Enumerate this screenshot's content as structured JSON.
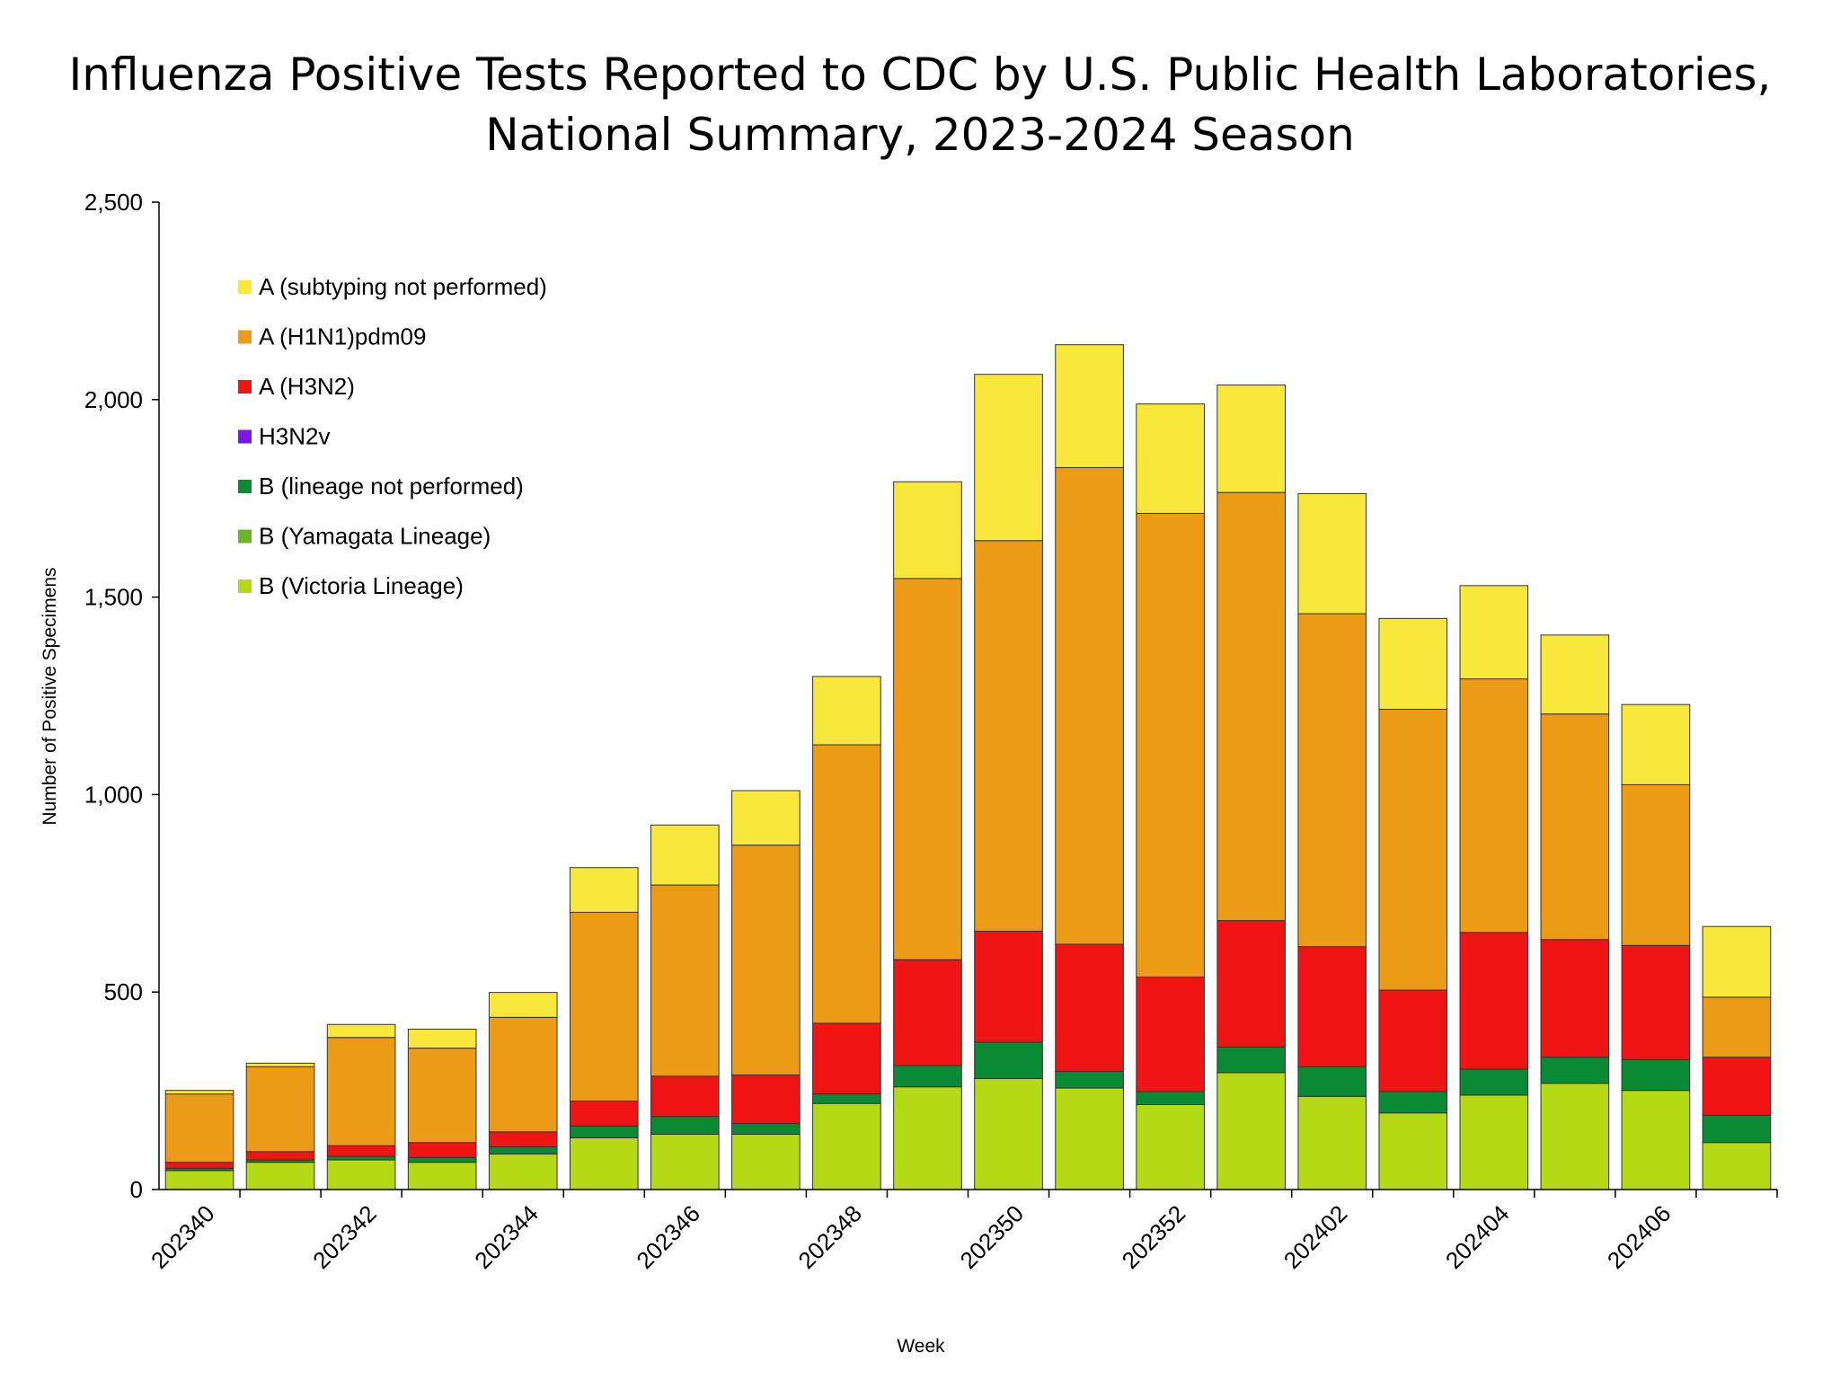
{
  "chart_data": {
    "type": "stacked_bar",
    "title": [
      "Influenza Positive Tests Reported to CDC by U.S. Public Health Laboratories,",
      "National Summary, 2023-2024 Season"
    ],
    "x_label": "Week",
    "y_label": "Number of Positive Specimens",
    "categories": [
      "202340",
      null,
      "202342",
      null,
      "202344",
      null,
      "202346",
      null,
      "202348",
      null,
      "202350",
      null,
      "202352",
      null,
      "202402",
      null,
      "202404",
      null,
      "202406",
      null
    ],
    "ylim": [
      0,
      2500
    ],
    "yticks": [
      0,
      500,
      {
        "value": 1000,
        "label": "1,000"
      },
      {
        "value": 1500,
        "label": "1,500"
      },
      {
        "value": 2000,
        "label": "2,000"
      },
      {
        "value": 2500,
        "label": "2,500"
      }
    ],
    "series": [
      {
        "name": "B (Victoria Lineage)",
        "color": "#b5da15",
        "values": [
          48,
          69,
          75,
          69,
          90,
          131,
          140,
          140,
          218,
          260,
          281,
          257,
          215,
          296,
          236,
          194,
          239,
          269,
          251,
          119
        ]
      },
      {
        "name": "B (Yamagata Lineage)",
        "color": "#6ab42a",
        "values": [
          0,
          0,
          0,
          0,
          0,
          0,
          0,
          0,
          0,
          0,
          0,
          0,
          0,
          0,
          0,
          0,
          0,
          0,
          0,
          0
        ]
      },
      {
        "name": "B (lineage not performed)",
        "color": "#0b8a35",
        "values": [
          6,
          6,
          9,
          12,
          18,
          30,
          45,
          27,
          24,
          54,
          92,
          42,
          33,
          65,
          75,
          54,
          66,
          66,
          78,
          69
        ]
      },
      {
        "name": "H3N2v",
        "color": "#7a18e0",
        "values": [
          0,
          0,
          0,
          0,
          0,
          0,
          0,
          0,
          0,
          0,
          0,
          0,
          0,
          0,
          0,
          0,
          0,
          0,
          0,
          0
        ]
      },
      {
        "name": "A (H3N2)",
        "color": "#f01414",
        "values": [
          15,
          21,
          27,
          38,
          38,
          63,
          102,
          123,
          179,
          268,
          281,
          322,
          290,
          320,
          304,
          257,
          346,
          298,
          289,
          147
        ]
      },
      {
        "name": "A (H1N1)pdm09",
        "color": "#ec9b17",
        "values": [
          173,
          215,
          274,
          239,
          290,
          478,
          484,
          582,
          705,
          965,
          989,
          1207,
          1174,
          1084,
          843,
          711,
          642,
          571,
          407,
          152
        ]
      },
      {
        "name": "A (subtyping not performed)",
        "color": "#f9e83c",
        "values": [
          9,
          9,
          33,
          48,
          63,
          113,
          152,
          138,
          173,
          245,
          421,
          311,
          277,
          272,
          304,
          230,
          236,
          200,
          203,
          179
        ]
      }
    ]
  }
}
